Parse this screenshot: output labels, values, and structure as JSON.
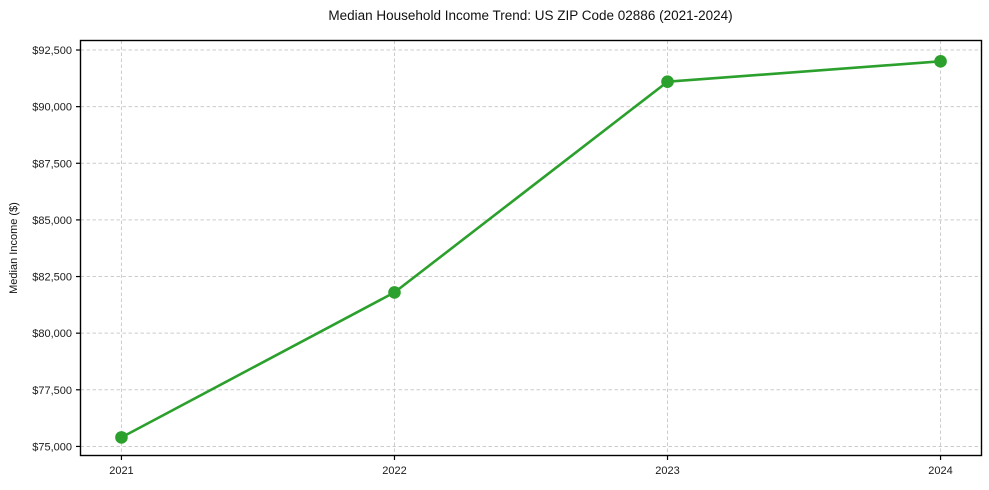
{
  "chart_data": {
    "type": "line",
    "title": "Median Household Income Trend: US ZIP Code 02886 (2021-2024)",
    "xlabel": "",
    "ylabel": "Median Income ($)",
    "x": [
      2021,
      2022,
      2023,
      2024
    ],
    "series": [
      {
        "name": "Median household income",
        "values": [
          75400,
          81800,
          91100,
          92000
        ],
        "color": "#2ca02c",
        "marker": "circle"
      }
    ],
    "xlim": [
      2020.85,
      2024.15
    ],
    "ylim": [
      74600,
      92920
    ],
    "xticks": [
      2021,
      2022,
      2023,
      2024
    ],
    "xtick_labels": [
      "2021",
      "2022",
      "2023",
      "2024"
    ],
    "yticks": [
      75000,
      77500,
      80000,
      82500,
      85000,
      87500,
      90000,
      92500
    ],
    "ytick_labels": [
      "$75,000",
      "$77,500",
      "$80,000",
      "$82,500",
      "$85,000",
      "$87,500",
      "$90,000",
      "$92,500"
    ],
    "grid": true,
    "grid_style": "dashed",
    "grid_color": "#cccccc",
    "spine_color": "#000000",
    "background": "#ffffff",
    "legend": "none"
  }
}
